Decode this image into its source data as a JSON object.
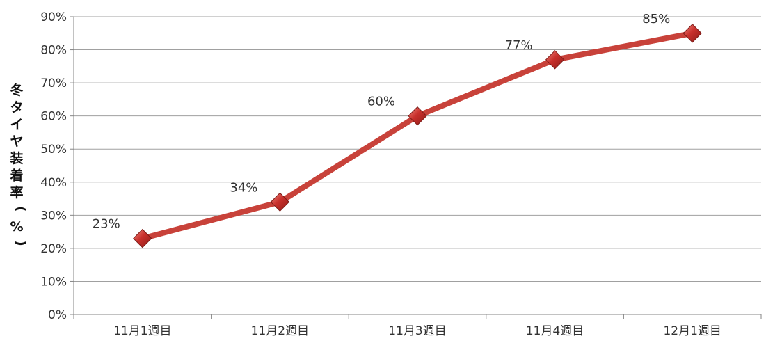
{
  "chart_data": {
    "type": "line",
    "title": "",
    "xlabel": "",
    "ylabel": "冬タイヤ装着率(%)",
    "categories": [
      "11月1週目",
      "11月2週目",
      "11月3週目",
      "11月4週目",
      "12月1週目"
    ],
    "series": [
      {
        "values": [
          23,
          34,
          60,
          77,
          85
        ],
        "data_labels": [
          "23%",
          "34%",
          "60%",
          "77%",
          "85%"
        ],
        "color": "#c8423a",
        "marker": "diamond",
        "marker_color": "#c8302c"
      }
    ],
    "ylim": [
      0,
      90
    ],
    "yticks": [
      0,
      10,
      20,
      30,
      40,
      50,
      60,
      70,
      80,
      90
    ],
    "ytick_labels": [
      "0%",
      "10%",
      "20%",
      "30%",
      "40%",
      "50%",
      "60%",
      "70%",
      "80%",
      "90%"
    ],
    "grid": true,
    "legend": "none",
    "grid_color": "#a0a0a0",
    "axis_color": "#868686"
  }
}
